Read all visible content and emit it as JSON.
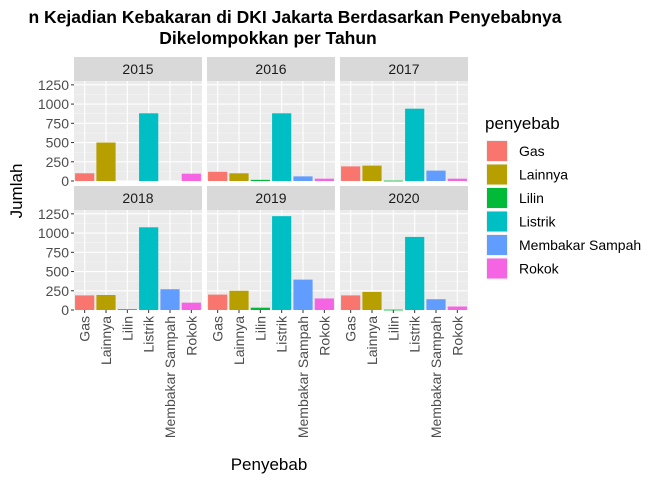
{
  "chart_data": {
    "type": "bar",
    "title": "n Kejadian Kebakaran di DKI Jakarta Berdasarkan Penyebabnya",
    "subtitle": "Dikelompokkan per Tahun",
    "xlabel": "Penyebab",
    "ylabel": "Jumlah",
    "ylim": [
      0,
      1300
    ],
    "yticks": [
      0,
      250,
      500,
      750,
      1000,
      1250
    ],
    "grid": true,
    "legend": {
      "title": "penyebab",
      "position": "right"
    },
    "categories": [
      "Gas",
      "Lainnya",
      "Lilin",
      "Listrik",
      "Membakar Sampah",
      "Rokok"
    ],
    "colors": [
      "#F8766D",
      "#B79F00",
      "#00BA38",
      "#00BFC4",
      "#619CFF",
      "#F564E3"
    ],
    "panels": [
      {
        "label": "2015",
        "values": [
          100,
          500,
          0,
          880,
          0,
          95
        ]
      },
      {
        "label": "2016",
        "values": [
          120,
          100,
          15,
          880,
          60,
          30
        ]
      },
      {
        "label": "2017",
        "values": [
          190,
          200,
          5,
          940,
          135,
          30
        ]
      },
      {
        "label": "2018",
        "values": [
          190,
          195,
          10,
          1075,
          270,
          95
        ]
      },
      {
        "label": "2019",
        "values": [
          200,
          250,
          30,
          1220,
          395,
          150
        ]
      },
      {
        "label": "2020",
        "values": [
          190,
          235,
          5,
          950,
          140,
          45
        ]
      }
    ]
  }
}
